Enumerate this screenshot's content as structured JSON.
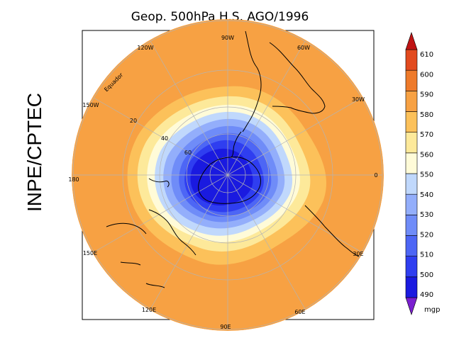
{
  "title": "Geop. 500hPa H.S. AGO/1996",
  "side_label": "INPE/CPTEC",
  "longitude_labels": [
    "90W",
    "60W",
    "30W",
    "0",
    "30E",
    "60E",
    "90E",
    "120E",
    "150E",
    "180",
    "150W",
    "120W"
  ],
  "latitude_labels": [
    "Equador",
    "20",
    "40",
    "60"
  ],
  "colorbar": {
    "levels": [
      490,
      500,
      510,
      520,
      530,
      540,
      550,
      560,
      570,
      580,
      590,
      600,
      610
    ],
    "labels": [
      "610",
      "600",
      "590",
      "580",
      "570",
      "560",
      "550",
      "540",
      "530",
      "520",
      "510",
      "500",
      "490"
    ],
    "colors": [
      "#7a1fd0",
      "#1a1ae0",
      "#2f3ef0",
      "#4d66f5",
      "#6f8cf8",
      "#93aefb",
      "#c0d8fc",
      "#fffbd8",
      "#fde99a",
      "#fcc15a",
      "#f7a143",
      "#ee7a2a",
      "#e24a1e",
      "#c01414"
    ],
    "unit": "mgp"
  },
  "colors": {
    "ocean_high": "#f7a143",
    "low_core": "#1a1ae0",
    "coastline": "#000000",
    "grid": "#b4b4b4"
  }
}
